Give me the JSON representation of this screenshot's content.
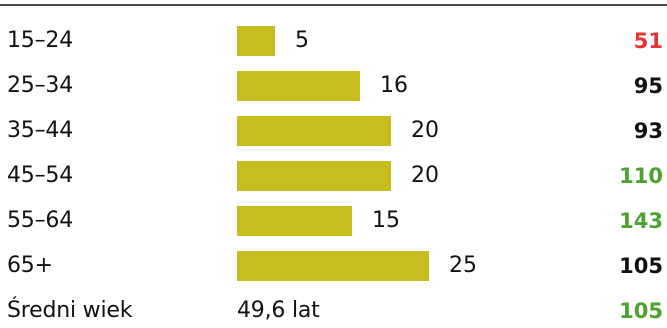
{
  "colors": {
    "bar": "#c8bc21",
    "index_low": "#e33535",
    "index_neutral": "#111111",
    "index_high": "#4ea22f"
  },
  "chart_data": {
    "type": "bar",
    "orientation": "horizontal",
    "categories": [
      "15–24",
      "25–34",
      "35–44",
      "45–54",
      "55–64",
      "65+"
    ],
    "values": [
      5,
      16,
      20,
      20,
      15,
      25
    ],
    "index_values": [
      "51",
      "95",
      "93",
      "110",
      "143",
      "105"
    ],
    "index_status": [
      "low",
      "neutral",
      "neutral",
      "high",
      "high",
      "neutral"
    ],
    "xlim": [
      0,
      25
    ],
    "grid": false,
    "summary": {
      "label": "Średni wiek",
      "value": "49,6 lat",
      "index": "105",
      "index_status": "high"
    }
  }
}
